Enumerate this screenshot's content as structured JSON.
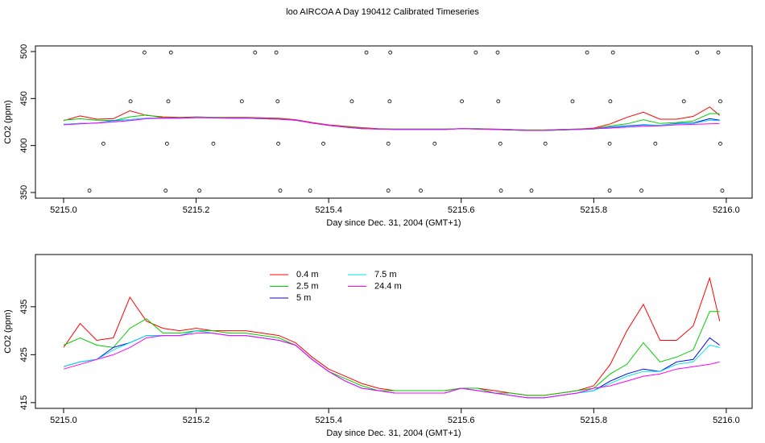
{
  "chart_data": [
    {
      "type": "line",
      "title": "loo AIRCOA A  Day 190412  Calibrated Timeseries",
      "x_label": "Day since Dec. 31, 2004 (GMT+1)",
      "y_label": "CO2 (ppm)",
      "xlim": [
        5214.9575,
        5216.039
      ],
      "ylim": [
        344,
        506
      ],
      "xticks": [
        {
          "value": 5215,
          "label": "5215.0"
        },
        {
          "value": 5215.2,
          "label": "5215.2"
        },
        {
          "value": 5215.4,
          "label": "5215.4"
        },
        {
          "value": 5215.6,
          "label": "5215.6"
        },
        {
          "value": 5215.8,
          "label": "5215.8"
        },
        {
          "value": 5216,
          "label": "5216.0"
        }
      ],
      "yticks": [
        350,
        400,
        450,
        500
      ],
      "x": [
        5215.0,
        5215.025,
        5215.05,
        5215.075,
        5215.1,
        5215.125,
        5215.15,
        5215.175,
        5215.2,
        5215.225,
        5215.25,
        5215.275,
        5215.3,
        5215.325,
        5215.35,
        5215.375,
        5215.4,
        5215.425,
        5215.45,
        5215.475,
        5215.5,
        5215.525,
        5215.55,
        5215.575,
        5215.6,
        5215.625,
        5215.65,
        5215.675,
        5215.7,
        5215.725,
        5215.75,
        5215.775,
        5215.8,
        5215.825,
        5215.85,
        5215.875,
        5215.9,
        5215.925,
        5215.95,
        5215.975,
        5215.99
      ],
      "series": [
        {
          "color": "#ff0000",
          "values": [
            426.5,
            431.5,
            428,
            428.5,
            437,
            432,
            430.5,
            430,
            430.5,
            430,
            430,
            430,
            429.5,
            429,
            427.5,
            424.5,
            422,
            420.5,
            419,
            418,
            417.5,
            417.5,
            417.5,
            417.5,
            418,
            418,
            417.5,
            417,
            416.5,
            416.5,
            417,
            417.5,
            418.5,
            423,
            430,
            435.5,
            428,
            428,
            431,
            441,
            432
          ]
        },
        {
          "color": "#00cd00",
          "values": [
            427,
            428.5,
            427,
            426.5,
            430.5,
            432.5,
            429.5,
            429.5,
            430,
            430,
            429.5,
            429.5,
            429,
            428.5,
            427,
            424,
            421.5,
            420,
            418.5,
            417.5,
            417.5,
            417.5,
            417.5,
            417.5,
            418,
            418,
            417,
            417,
            416.5,
            416.5,
            417,
            417.5,
            418,
            421,
            423,
            427.5,
            423.5,
            424.5,
            426,
            434,
            434
          ]
        },
        {
          "color": "#0000ff",
          "values": [
            422.5,
            423.5,
            424,
            426.5,
            427.5,
            429,
            429,
            429,
            430,
            429.5,
            429,
            429,
            428.5,
            428,
            427,
            424,
            421.5,
            419.5,
            418,
            417.5,
            417,
            417,
            417,
            417,
            418,
            417.5,
            417,
            416.5,
            416,
            416,
            416.5,
            417,
            417.5,
            419.5,
            421,
            422,
            421.5,
            423.5,
            424,
            428.5,
            427
          ]
        },
        {
          "color": "#00e5e5",
          "values": [
            422.5,
            423.5,
            424,
            426,
            427.5,
            429,
            429,
            429,
            430,
            429.5,
            429,
            429,
            428.5,
            428,
            427,
            424,
            421.5,
            419.5,
            418,
            417.5,
            417,
            417,
            417,
            417,
            418,
            417.5,
            417,
            416.5,
            416,
            416,
            416.5,
            417,
            417.5,
            419,
            420.5,
            421.5,
            421.5,
            423,
            423.5,
            427,
            426.5
          ]
        },
        {
          "color": "#ff00ff",
          "values": [
            422,
            423,
            424,
            425,
            426.5,
            428.5,
            429,
            429,
            429.5,
            429.5,
            429,
            429,
            428.5,
            428,
            427,
            424,
            421.5,
            419.5,
            418,
            417.5,
            417,
            417,
            417,
            417,
            418,
            417.5,
            417,
            416.5,
            416,
            416,
            416.5,
            417,
            418,
            418.5,
            419.5,
            420.5,
            421,
            422,
            422.5,
            423,
            423.5
          ]
        }
      ],
      "markers": {
        "x": [
          5215.122,
          5215.162,
          5215.289,
          5215.321,
          5215.457,
          5215.493,
          5215.622,
          5215.655,
          5215.79,
          5215.829,
          5215.956,
          5215.988,
          5215.101,
          5215.158,
          5215.269,
          5215.323,
          5215.435,
          5215.492,
          5215.601,
          5215.656,
          5215.768,
          5215.825,
          5215.936,
          5215.991,
          5215.06,
          5215.156,
          5215.226,
          5215.324,
          5215.392,
          5215.49,
          5215.56,
          5215.659,
          5215.727,
          5215.824,
          5215.893,
          5215.991,
          5215.039,
          5215.154,
          5215.205,
          5215.327,
          5215.372,
          5215.49,
          5215.539,
          5215.66,
          5215.706,
          5215.824,
          5215.872,
          5215.994
        ],
        "values": [
          499,
          499,
          499,
          499,
          499,
          499,
          499,
          499,
          499,
          499,
          499,
          499,
          447,
          447,
          447,
          447,
          447,
          447,
          447,
          447,
          447,
          447,
          447,
          447,
          402,
          402,
          402,
          402,
          402,
          402,
          402,
          402,
          402,
          402,
          402,
          402,
          352,
          352,
          352,
          352,
          352,
          352,
          352,
          352,
          352,
          352,
          352,
          352
        ]
      }
    },
    {
      "type": "line",
      "x_label": "Day since Dec. 31, 2004 (GMT+1)",
      "y_label": "CO2 (ppm)",
      "xlim": [
        5214.9575,
        5216.039
      ],
      "ylim": [
        413.8,
        445.9
      ],
      "xticks": [
        {
          "value": 5215,
          "label": "5215.0"
        },
        {
          "value": 5215.2,
          "label": "5215.2"
        },
        {
          "value": 5215.4,
          "label": "5215.4"
        },
        {
          "value": 5215.6,
          "label": "5215.6"
        },
        {
          "value": 5215.8,
          "label": "5215.8"
        },
        {
          "value": 5216,
          "label": "5216.0"
        }
      ],
      "yticks": [
        415,
        425,
        435
      ],
      "legend": "top-left",
      "x": [
        5215.0,
        5215.025,
        5215.05,
        5215.075,
        5215.1,
        5215.125,
        5215.15,
        5215.175,
        5215.2,
        5215.225,
        5215.25,
        5215.275,
        5215.3,
        5215.325,
        5215.35,
        5215.375,
        5215.4,
        5215.425,
        5215.45,
        5215.475,
        5215.5,
        5215.525,
        5215.55,
        5215.575,
        5215.6,
        5215.625,
        5215.65,
        5215.675,
        5215.7,
        5215.725,
        5215.75,
        5215.775,
        5215.8,
        5215.825,
        5215.85,
        5215.875,
        5215.9,
        5215.925,
        5215.95,
        5215.975,
        5215.99
      ],
      "series": [
        {
          "name": "0.4 m",
          "color": "#ff0000",
          "values": [
            426.5,
            431.5,
            428,
            428.5,
            437,
            432,
            430.5,
            430,
            430.5,
            430,
            430,
            430,
            429.5,
            429,
            427.5,
            424.5,
            422,
            420.5,
            419,
            418,
            417.5,
            417.5,
            417.5,
            417.5,
            418,
            418,
            417.5,
            417,
            416.5,
            416.5,
            417,
            417.5,
            418.5,
            423,
            430,
            435.5,
            428,
            428,
            431,
            441,
            432
          ]
        },
        {
          "name": "2.5 m",
          "color": "#00cd00",
          "values": [
            427,
            428.5,
            427,
            426.5,
            430.5,
            432.5,
            429.5,
            429.5,
            430,
            430,
            429.5,
            429.5,
            429,
            428.5,
            427,
            424,
            421.5,
            420,
            418.5,
            417.5,
            417.5,
            417.5,
            417.5,
            417.5,
            418,
            418,
            417,
            417,
            416.5,
            416.5,
            417,
            417.5,
            418,
            421,
            423,
            427.5,
            423.5,
            424.5,
            426,
            434,
            434
          ]
        },
        {
          "name": "5 m",
          "color": "#0000ff",
          "values": [
            422.5,
            423.5,
            424,
            426.5,
            427.5,
            429,
            429,
            429,
            430,
            429.5,
            429,
            429,
            428.5,
            428,
            427,
            424,
            421.5,
            419.5,
            418,
            417.5,
            417,
            417,
            417,
            417,
            418,
            417.5,
            417,
            416.5,
            416,
            416,
            416.5,
            417,
            417.5,
            419.5,
            421,
            422,
            421.5,
            423.5,
            424,
            428.5,
            427
          ]
        },
        {
          "name": "7.5 m",
          "color": "#00e5e5",
          "values": [
            422.5,
            423.5,
            424,
            426,
            427.5,
            429,
            429,
            429,
            430,
            429.5,
            429,
            429,
            428.5,
            428,
            427,
            424,
            421.5,
            419.5,
            418,
            417.5,
            417,
            417,
            417,
            417,
            418,
            417.5,
            417,
            416.5,
            416,
            416,
            416.5,
            417,
            417.5,
            419,
            420.5,
            421.5,
            421.5,
            423,
            423.5,
            427,
            426.5
          ]
        },
        {
          "name": "24.4 m",
          "color": "#ff00ff",
          "values": [
            422,
            423,
            424,
            425,
            426.5,
            428.5,
            429,
            429,
            429.5,
            429.5,
            429,
            429,
            428.5,
            428,
            427,
            424,
            421.5,
            419.5,
            418,
            417.5,
            417,
            417,
            417,
            417,
            418,
            417.5,
            417,
            416.5,
            416,
            416,
            416.5,
            417,
            418,
            418.5,
            419.5,
            420.5,
            421,
            422,
            422.5,
            423,
            423.5
          ]
        }
      ]
    }
  ]
}
